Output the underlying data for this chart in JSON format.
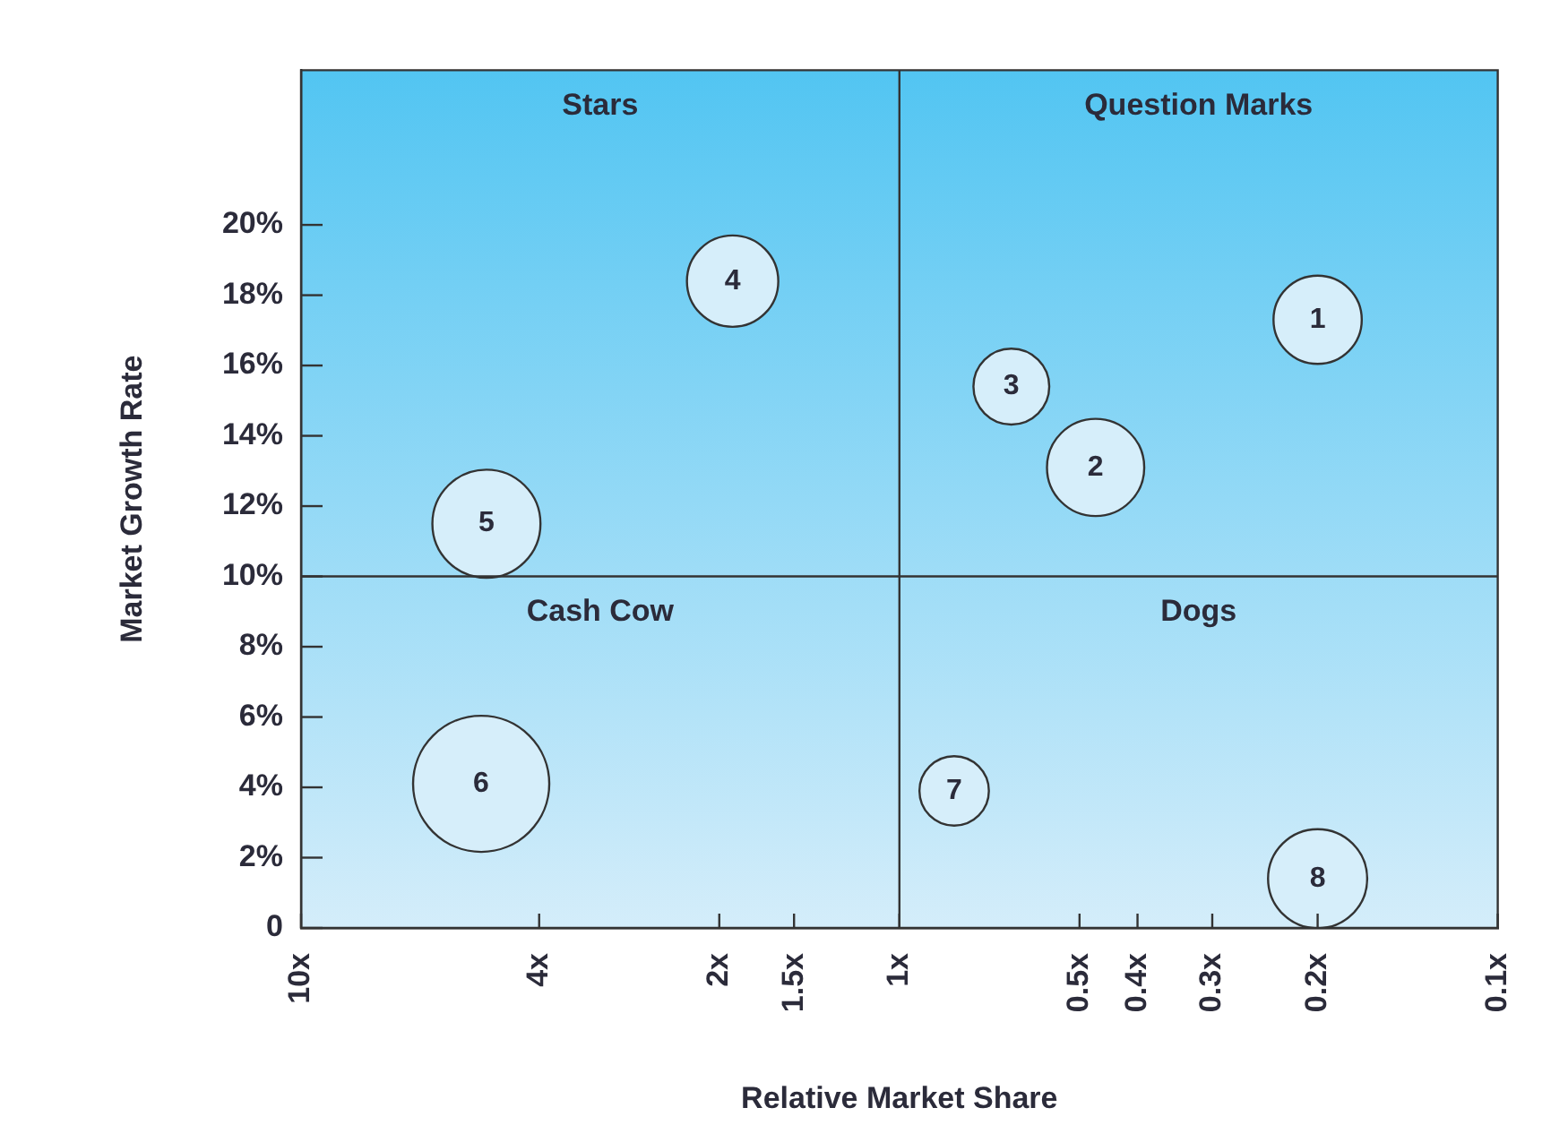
{
  "chart_data": {
    "type": "bubble",
    "xlabel": "Relative Market Share",
    "ylabel": "Market Growth Rate",
    "log": "x",
    "xlim": [
      10,
      0.1
    ],
    "xticks": [
      {
        "value": 10,
        "label": "10x"
      },
      {
        "value": 4,
        "label": "4x"
      },
      {
        "value": 2,
        "label": "2x"
      },
      {
        "value": 1.5,
        "label": "1.5x"
      },
      {
        "value": 1,
        "label": "1x"
      },
      {
        "value": 0.5,
        "label": "0.5x"
      },
      {
        "value": 0.4,
        "label": "0.4x"
      },
      {
        "value": 0.3,
        "label": "0.3x"
      },
      {
        "value": 0.2,
        "label": "0.2x"
      },
      {
        "value": 0.1,
        "label": "0.1x"
      }
    ],
    "ylim": [
      0,
      24.4
    ],
    "yticks": [
      0,
      {
        "value": 2,
        "label": "2%"
      },
      {
        "value": 4,
        "label": "4%"
      },
      {
        "value": 6,
        "label": "6%"
      },
      {
        "value": 8,
        "label": "8%"
      },
      {
        "value": 10,
        "label": "10%"
      },
      {
        "value": 12,
        "label": "12%"
      },
      {
        "value": 14,
        "label": "14%"
      },
      {
        "value": 16,
        "label": "16%"
      },
      {
        "value": 18,
        "label": "18%"
      },
      {
        "value": 20,
        "label": "20%"
      }
    ],
    "grid": false,
    "legend": false,
    "series": [
      {
        "color": "#d6eefa",
        "x": [
          0.2,
          0.47,
          0.65,
          1.9,
          4.9,
          5.0,
          0.81,
          0.2
        ],
        "values": [
          17.3,
          13.1,
          15.4,
          18.4,
          11.5,
          4.1,
          3.9,
          1.4
        ],
        "sizes": [
          0.42,
          0.51,
          0.31,
          0.45,
          0.63,
          1,
          0.26,
          0.53
        ]
      }
    ],
    "ref_lines": [
      {
        "axis": "x",
        "value": 1,
        "color": "#333333"
      },
      {
        "axis": "y",
        "value": 10,
        "color": "#333333"
      }
    ],
    "annotations": [
      "Stars",
      "Question Marks",
      "Cash Cow",
      "Dogs",
      {
        "text": "1",
        "x": 0.2,
        "y": 17.3
      },
      {
        "text": "2",
        "x": 0.47,
        "y": 13.1
      },
      {
        "text": "3",
        "x": 0.65,
        "y": 15.4
      },
      {
        "text": "4",
        "x": 1.9,
        "y": 18.4
      },
      {
        "text": "5",
        "x": 4.9,
        "y": 11.5
      },
      {
        "text": "6",
        "x": 5.0,
        "y": 4.1
      },
      {
        "text": "7",
        "x": 0.81,
        "y": 3.9
      },
      {
        "text": "8",
        "x": 0.2,
        "y": 1.4
      }
    ]
  }
}
